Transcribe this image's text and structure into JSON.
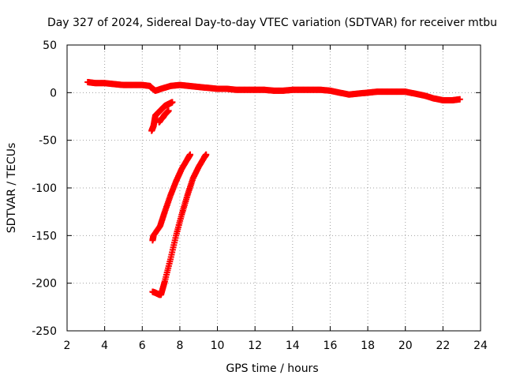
{
  "chart_data": {
    "type": "scatter",
    "title": "Day 327 of 2024, Sidereal Day-to-day VTEC variation (SDTVAR) for receiver mtbu",
    "xlabel": "GPS time / hours",
    "ylabel": "SDTVAR / TECUs",
    "xlim": [
      2,
      24
    ],
    "ylim": [
      -250,
      50
    ],
    "xticks": [
      2,
      4,
      6,
      8,
      10,
      12,
      14,
      16,
      18,
      20,
      22,
      24
    ],
    "yticks": [
      -250,
      -200,
      -150,
      -100,
      -50,
      0,
      50
    ],
    "grid": true,
    "marker": "+",
    "color": "#ff0000",
    "series": [
      {
        "name": "main",
        "x": [
          3.1,
          3.5,
          4.0,
          4.5,
          5.0,
          5.5,
          6.0,
          6.4,
          6.5,
          6.7,
          7.0,
          7.5,
          8.0,
          8.5,
          9.0,
          9.5,
          10.0,
          10.5,
          11.0,
          11.5,
          12.0,
          12.5,
          13.0,
          13.5,
          14.0,
          14.5,
          15.0,
          15.5,
          16.0,
          16.5,
          17.0,
          17.5,
          18.0,
          18.5,
          19.0,
          19.5,
          20.0,
          20.5,
          21.0,
          21.5,
          22.0,
          22.5,
          22.9
        ],
        "y": [
          11,
          10,
          10,
          9,
          8,
          8,
          8,
          7,
          5,
          2,
          4,
          7,
          8,
          7,
          6,
          5,
          4,
          4,
          3,
          3,
          3,
          3,
          2,
          2,
          3,
          3,
          3,
          3,
          2,
          0,
          -2,
          -1,
          0,
          1,
          1,
          1,
          1,
          -1,
          -3,
          -6,
          -8,
          -8,
          -7
        ]
      },
      {
        "name": "drop-segment-a",
        "x": [
          6.5,
          6.6,
          6.7,
          6.8,
          6.9,
          7.0,
          7.1,
          7.2,
          7.3,
          7.4,
          7.5,
          7.6
        ],
        "y": [
          -40,
          -35,
          -24,
          -22,
          -20,
          -18,
          -16,
          -14,
          -13,
          -12,
          -11,
          -10
        ]
      },
      {
        "name": "drop-segment-a2",
        "x": [
          6.9,
          7.0,
          7.1,
          7.2,
          7.3,
          7.4
        ],
        "y": [
          -31,
          -28,
          -26,
          -23,
          -21,
          -19
        ]
      },
      {
        "name": "ramp-upper",
        "x": [
          6.55,
          6.6,
          6.95,
          7.2,
          7.5,
          7.8,
          8.1,
          8.4,
          8.55
        ],
        "y": [
          -155,
          -150,
          -140,
          -125,
          -108,
          -93,
          -80,
          -70,
          -65
        ]
      },
      {
        "name": "ramp-lower",
        "x": [
          6.55,
          6.7,
          6.9,
          7.0,
          7.2,
          7.5,
          7.8,
          8.1,
          8.4,
          8.7,
          9.0,
          9.3,
          9.4
        ],
        "y": [
          -209,
          -210,
          -212,
          -212,
          -198,
          -175,
          -150,
          -128,
          -108,
          -90,
          -78,
          -68,
          -65
        ]
      }
    ]
  }
}
